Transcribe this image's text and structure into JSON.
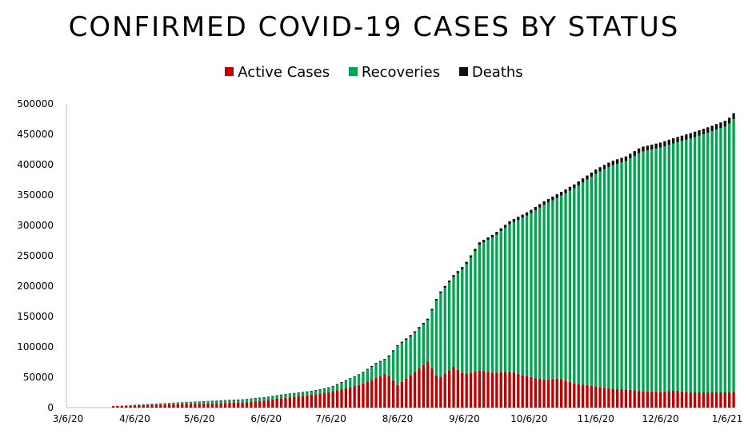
{
  "chart_data": {
    "type": "bar",
    "stacked": true,
    "title": "CONFIRMED COVID-19 CASES BY STATUS",
    "xlabel": "",
    "ylabel": "",
    "ylim": [
      0,
      500000
    ],
    "yticks": [
      0,
      50000,
      100000,
      150000,
      200000,
      250000,
      300000,
      350000,
      400000,
      450000,
      500000
    ],
    "xticks": [
      "3/6/20",
      "4/6/20",
      "5/6/20",
      "6/6/20",
      "7/6/20",
      "8/6/20",
      "9/6/20",
      "10/6/20",
      "11/6/20",
      "12/6/20",
      "1/6/21"
    ],
    "x_range": [
      "3/6/20",
      "1/6/21"
    ],
    "grid": false,
    "legend_position": "top",
    "series": [
      {
        "name": "Active Cases",
        "color": "#c00000"
      },
      {
        "name": "Recoveries",
        "color": "#00a550"
      },
      {
        "name": "Deaths",
        "color": "#111111"
      }
    ],
    "data": [
      [
        "3/27/20",
        2500,
        0,
        100
      ],
      [
        "4/1/20",
        3000,
        200,
        200
      ],
      [
        "4/6/20",
        3800,
        600,
        300
      ],
      [
        "4/13/20",
        4600,
        1200,
        400
      ],
      [
        "4/20/20",
        5000,
        1800,
        500
      ],
      [
        "4/27/20",
        5700,
        2300,
        600
      ],
      [
        "5/6/20",
        6500,
        3000,
        700
      ],
      [
        "5/13/20",
        7000,
        3700,
        700
      ],
      [
        "5/20/20",
        7800,
        4200,
        800
      ],
      [
        "5/27/20",
        8500,
        4500,
        800
      ],
      [
        "6/6/20",
        12000,
        4700,
        900
      ],
      [
        "6/13/20",
        15500,
        5000,
        900
      ],
      [
        "6/20/20",
        18000,
        5500,
        1000
      ],
      [
        "6/27/20",
        21000,
        5500,
        1000
      ],
      [
        "7/6/20",
        26000,
        7000,
        1100
      ],
      [
        "7/13/20",
        32000,
        12000,
        1200
      ],
      [
        "7/20/20",
        38000,
        17000,
        1300
      ],
      [
        "7/27/20",
        49000,
        23000,
        1500
      ],
      [
        "8/1/20",
        56000,
        24000,
        1700
      ],
      [
        "8/6/20",
        37000,
        64000,
        1900
      ],
      [
        "8/13/20",
        56000,
        64000,
        2200
      ],
      [
        "8/20/20",
        76000,
        68000,
        2500
      ],
      [
        "8/25/20",
        48000,
        136000,
        2800
      ],
      [
        "9/1/20",
        67000,
        148000,
        3200
      ],
      [
        "9/6/20",
        55000,
        176000,
        3700
      ],
      [
        "9/13/20",
        61000,
        207000,
        4100
      ],
      [
        "9/20/20",
        57000,
        225000,
        4500
      ],
      [
        "9/27/20",
        59000,
        243000,
        4800
      ],
      [
        "10/6/20",
        51000,
        267000,
        5300
      ],
      [
        "10/13/20",
        46000,
        288000,
        5700
      ],
      [
        "10/20/20",
        48000,
        299000,
        6100
      ],
      [
        "10/27/20",
        40000,
        321000,
        6500
      ],
      [
        "11/6/20",
        35000,
        350000,
        7000
      ],
      [
        "11/13/20",
        31000,
        367000,
        7300
      ],
      [
        "11/20/20",
        30000,
        376000,
        7600
      ],
      [
        "11/27/20",
        27000,
        394000,
        7900
      ],
      [
        "12/6/20",
        26000,
        402000,
        8300
      ],
      [
        "12/13/20",
        28000,
        408000,
        8600
      ],
      [
        "12/20/20",
        25000,
        418000,
        8900
      ],
      [
        "12/27/20",
        25000,
        426000,
        9200
      ],
      [
        "1/6/21",
        25000,
        439000,
        9500
      ],
      [
        "1/9/21",
        26000,
        449000,
        9700
      ]
    ]
  }
}
